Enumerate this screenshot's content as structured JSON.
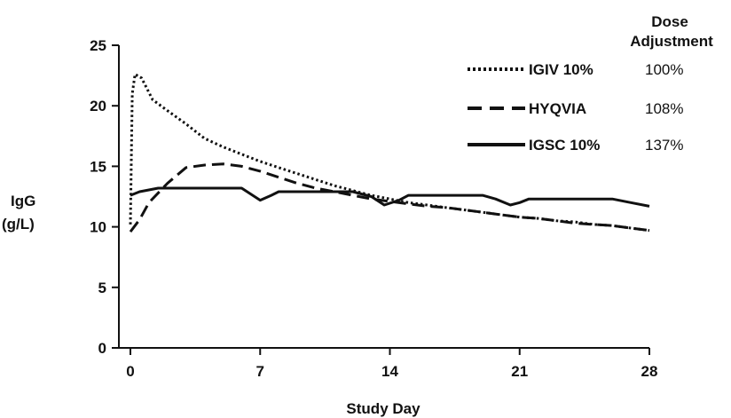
{
  "chart_data": {
    "type": "line",
    "xlabel": "Study Day",
    "ylabel_lines": [
      "IgG",
      "(g/L)"
    ],
    "xlim": [
      0,
      28
    ],
    "ylim": [
      0,
      25
    ],
    "x_ticks": [
      0,
      7,
      14,
      21,
      28
    ],
    "y_ticks": [
      0,
      5,
      10,
      15,
      20,
      25
    ],
    "grid": false,
    "legend_position": "top-right",
    "legend_header_lines": [
      "Dose",
      "Adjustment"
    ],
    "series": [
      {
        "name": "IGIV 10%",
        "dose_adjustment": "100%",
        "style": "dotted",
        "points": [
          [
            0,
            10.2
          ],
          [
            0.1,
            21
          ],
          [
            0.25,
            22.6
          ],
          [
            0.6,
            22.3
          ],
          [
            1.2,
            20.5
          ],
          [
            2,
            19.6
          ],
          [
            3,
            18.5
          ],
          [
            4,
            17.3
          ],
          [
            5,
            16.6
          ],
          [
            6,
            16.0
          ],
          [
            7,
            15.4
          ],
          [
            8,
            14.9
          ],
          [
            9,
            14.4
          ],
          [
            10,
            13.9
          ],
          [
            11,
            13.4
          ],
          [
            12,
            13.0
          ],
          [
            13,
            12.6
          ],
          [
            14,
            12.3
          ],
          [
            15,
            12.0
          ],
          [
            16,
            11.8
          ],
          [
            17,
            11.6
          ],
          [
            18,
            11.4
          ],
          [
            19,
            11.2
          ],
          [
            20,
            11.0
          ],
          [
            21,
            10.8
          ],
          [
            22,
            10.7
          ],
          [
            23,
            10.5
          ],
          [
            24,
            10.4
          ],
          [
            25,
            10.2
          ],
          [
            26,
            10.1
          ],
          [
            27,
            9.9
          ],
          [
            28,
            9.7
          ]
        ]
      },
      {
        "name": "HYQVIA",
        "dose_adjustment": "108%",
        "style": "dashed",
        "points": [
          [
            0,
            9.6
          ],
          [
            0.5,
            10.6
          ],
          [
            1,
            12.0
          ],
          [
            2,
            13.6
          ],
          [
            3,
            14.9
          ],
          [
            4,
            15.1
          ],
          [
            5,
            15.2
          ],
          [
            6,
            15.0
          ],
          [
            7,
            14.6
          ],
          [
            8,
            14.1
          ],
          [
            9,
            13.6
          ],
          [
            10,
            13.2
          ],
          [
            11,
            12.9
          ],
          [
            12,
            12.6
          ],
          [
            13,
            12.3
          ],
          [
            14,
            12.1
          ],
          [
            15,
            11.9
          ],
          [
            16,
            11.7
          ],
          [
            17,
            11.6
          ],
          [
            18,
            11.4
          ],
          [
            19,
            11.2
          ],
          [
            20,
            11.0
          ],
          [
            21,
            10.8
          ],
          [
            22,
            10.7
          ],
          [
            23,
            10.5
          ],
          [
            24,
            10.3
          ],
          [
            25,
            10.2
          ],
          [
            26,
            10.1
          ],
          [
            27,
            9.9
          ],
          [
            28,
            9.7
          ]
        ]
      },
      {
        "name": "IGSC 10%",
        "dose_adjustment": "137%",
        "style": "solid",
        "points": [
          [
            0,
            12.6
          ],
          [
            0.5,
            12.9
          ],
          [
            1.5,
            13.2
          ],
          [
            3,
            13.2
          ],
          [
            4,
            13.2
          ],
          [
            5,
            13.2
          ],
          [
            6,
            13.2
          ],
          [
            7,
            12.2
          ],
          [
            7.6,
            12.6
          ],
          [
            8,
            12.9
          ],
          [
            9,
            12.9
          ],
          [
            10,
            12.9
          ],
          [
            11,
            12.9
          ],
          [
            12,
            12.9
          ],
          [
            13,
            12.5
          ],
          [
            13.7,
            11.8
          ],
          [
            14.5,
            12.2
          ],
          [
            15,
            12.6
          ],
          [
            16,
            12.6
          ],
          [
            17,
            12.6
          ],
          [
            18,
            12.6
          ],
          [
            19,
            12.6
          ],
          [
            19.7,
            12.3
          ],
          [
            20.5,
            11.8
          ],
          [
            21,
            12.0
          ],
          [
            21.5,
            12.3
          ],
          [
            22,
            12.3
          ],
          [
            23,
            12.3
          ],
          [
            24,
            12.3
          ],
          [
            25,
            12.3
          ],
          [
            26,
            12.3
          ],
          [
            27,
            12.0
          ],
          [
            28,
            11.7
          ]
        ]
      }
    ]
  }
}
